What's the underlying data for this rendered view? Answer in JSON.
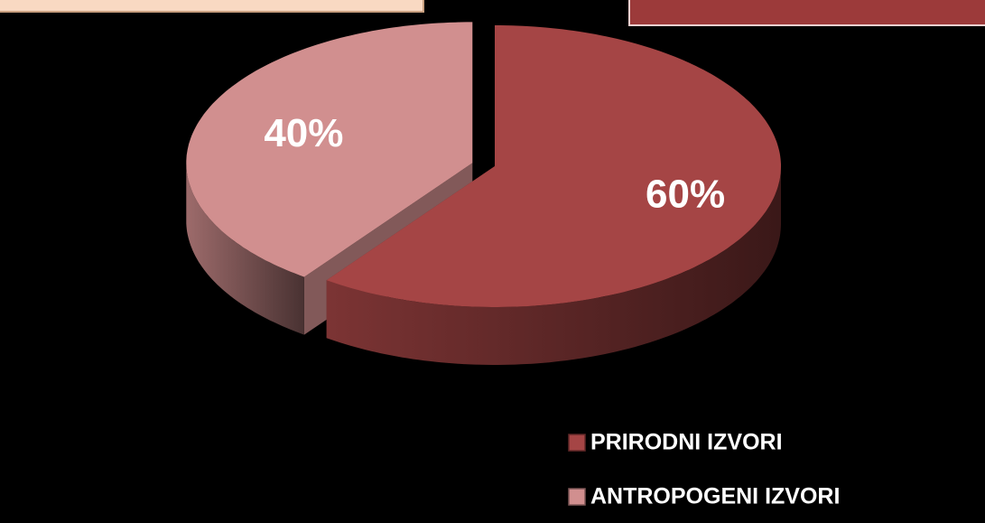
{
  "chart_data": {
    "type": "pie",
    "categories": [
      "PRIRODNI IZVORI",
      "ANTROPOGENI IZVORI"
    ],
    "values": [
      60,
      40
    ],
    "value_labels": [
      "60%",
      "40%"
    ],
    "colors": [
      "#a54545",
      "#d18f8f"
    ],
    "legend": "bottom-right"
  }
}
